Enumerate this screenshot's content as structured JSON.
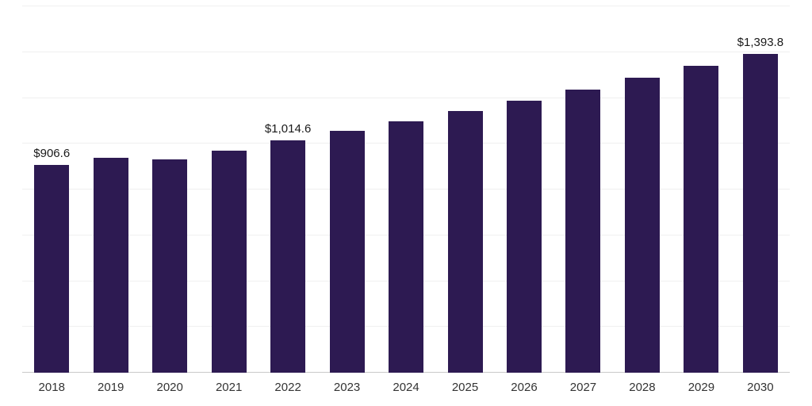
{
  "page": {
    "background_color": "#ffffff"
  },
  "chart_data": {
    "type": "bar",
    "title": "",
    "xlabel": "",
    "ylabel": "",
    "categories": [
      "2018",
      "2019",
      "2020",
      "2021",
      "2022",
      "2023",
      "2024",
      "2025",
      "2026",
      "2027",
      "2028",
      "2029",
      "2030"
    ],
    "values": [
      906.6,
      940.1,
      933.2,
      969.5,
      1014.6,
      1055.7,
      1098.5,
      1143.0,
      1189.3,
      1237.4,
      1287.6,
      1339.7,
      1393.8
    ],
    "point_labels": [
      "$906.6",
      null,
      null,
      null,
      "$1,014.6",
      null,
      null,
      null,
      null,
      null,
      null,
      null,
      "$1,393.8"
    ],
    "ylim": [
      0,
      1600
    ],
    "grid_step": 200,
    "grid": true,
    "legend": false,
    "bar_color": "#2d1a52",
    "gridline_color": "#f0f0f0",
    "axis_line_color": "#c9c9c9",
    "value_label_color": "#1a1a1a",
    "x_label_color": "#333333"
  }
}
